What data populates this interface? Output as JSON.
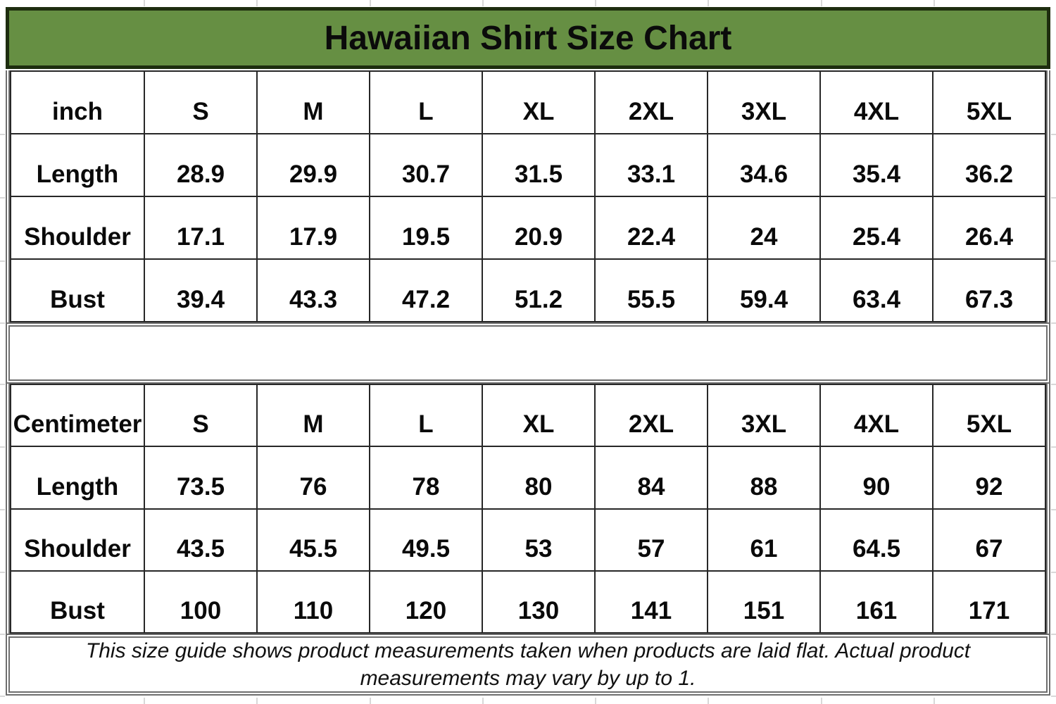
{
  "title": {
    "text": "Hawaiian Shirt Size Chart"
  },
  "colors": {
    "title_band_bg": "#668F43",
    "title_band_border": "#1E2D0F",
    "thick_border": "#6E6E6E",
    "thin_border": "#272727",
    "text": "#0A0A0A"
  },
  "tables": [
    {
      "unit_label": "inch",
      "size_headers": [
        "S",
        "M",
        "L",
        "XL",
        "2XL",
        "3XL",
        "4XL",
        "5XL"
      ],
      "rows": [
        {
          "label": "Length",
          "values": [
            "28.9",
            "29.9",
            "30.7",
            "31.5",
            "33.1",
            "34.6",
            "35.4",
            "36.2"
          ]
        },
        {
          "label": "Shoulder",
          "values": [
            "17.1",
            "17.9",
            "19.5",
            "20.9",
            "22.4",
            "24",
            "25.4",
            "26.4"
          ]
        },
        {
          "label": "Bust",
          "values": [
            "39.4",
            "43.3",
            "47.2",
            "51.2",
            "55.5",
            "59.4",
            "63.4",
            "67.3"
          ]
        }
      ]
    },
    {
      "unit_label": "Centimeter",
      "size_headers": [
        "S",
        "M",
        "L",
        "XL",
        "2XL",
        "3XL",
        "4XL",
        "5XL"
      ],
      "rows": [
        {
          "label": "Length",
          "values": [
            "73.5",
            "76",
            "78",
            "80",
            "84",
            "88",
            "90",
            "92"
          ]
        },
        {
          "label": "Shoulder",
          "values": [
            "43.5",
            "45.5",
            "49.5",
            "53",
            "57",
            "61",
            "64.5",
            "67"
          ]
        },
        {
          "label": "Bust",
          "values": [
            "100",
            "110",
            "120",
            "130",
            "141",
            "151",
            "161",
            "171"
          ]
        }
      ]
    }
  ],
  "footer": {
    "line1": "This size guide shows product measurements taken when products are laid flat. Actual product",
    "line2": "measurements may vary by up to 1."
  }
}
